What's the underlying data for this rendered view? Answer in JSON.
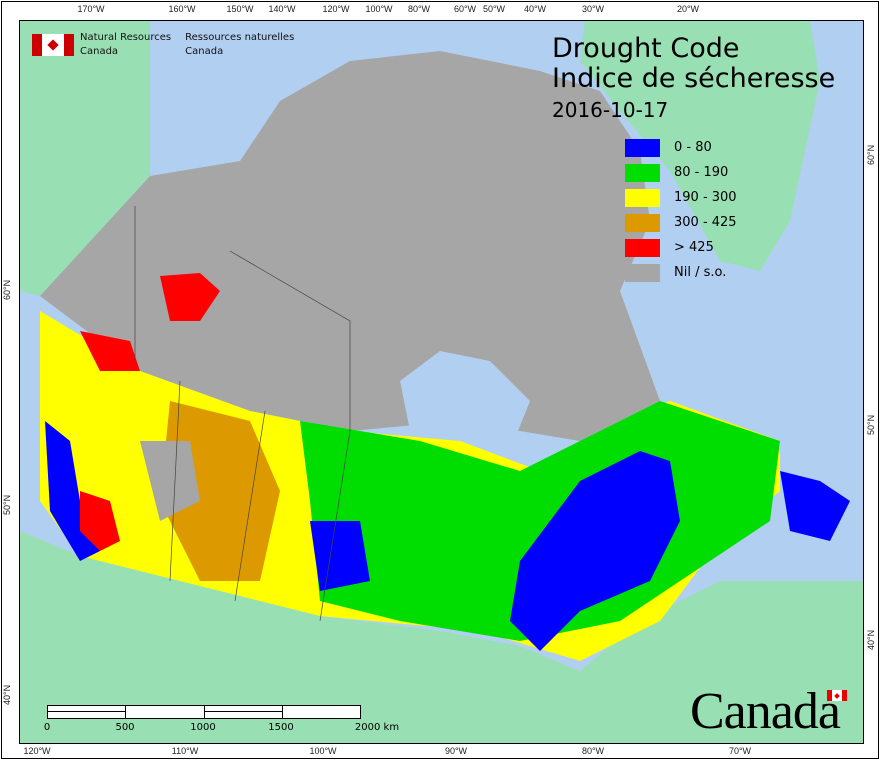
{
  "header": {
    "org_en_line1": "Natural Resources",
    "org_en_line2": "Canada",
    "org_fr_line1": "Ressources naturelles",
    "org_fr_line2": "Canada",
    "flag_icon": "canada-flag-icon"
  },
  "title": {
    "en": "Drought Code",
    "fr": "Indice de sécheresse",
    "date": "2016-10-17"
  },
  "legend": [
    {
      "label": "0 - 80",
      "color": "#0000ff"
    },
    {
      "label": "80 - 190",
      "color": "#00dd00"
    },
    {
      "label": "190 - 300",
      "color": "#ffff00"
    },
    {
      "label": "300 - 425",
      "color": "#dd9900"
    },
    {
      "label": "> 425",
      "color": "#ff0000"
    },
    {
      "label": "Nil / s.o.",
      "color": "#a6a6a6"
    }
  ],
  "axes": {
    "top": [
      "170°W",
      "160°W",
      "150°W",
      "140°W",
      "120°W",
      "100°W",
      "80°W",
      "60°W",
      "50°W",
      "40°W",
      "30°W",
      "20°W"
    ],
    "bottom": [
      "120°W",
      "110°W",
      "100°W",
      "90°W",
      "80°W",
      "70°W"
    ],
    "left": [
      "60°N",
      "50°N",
      "40°N"
    ],
    "right": [
      "60°N",
      "50°N",
      "40°N"
    ]
  },
  "scale_bar": {
    "labels": [
      "0",
      "500",
      "1000",
      "1500",
      "2000 km"
    ]
  },
  "wordmark": "Canada",
  "colors": {
    "water": "#b1cff0",
    "land_other": "#98e0b4",
    "nil": "#a6a6a6"
  }
}
